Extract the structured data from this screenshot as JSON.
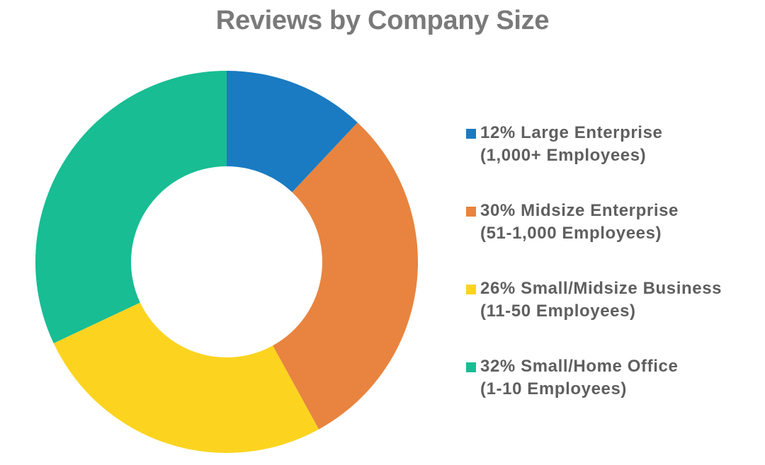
{
  "chart_data": {
    "type": "pie",
    "title": "Reviews by Company Size",
    "slices": [
      {
        "label": "Large Enterprise",
        "sublabel": "(1,000+ Employees)",
        "value": 12,
        "display": "12%",
        "color": "#1a7bc2"
      },
      {
        "label": "Midsize Enterprise",
        "sublabel": "(51-1,000 Employees)",
        "value": 30,
        "display": "30%",
        "color": "#e8843f"
      },
      {
        "label": "Small/Midsize Business",
        "sublabel": "(11-50 Employees)",
        "value": 26,
        "display": "26%",
        "color": "#fcd420"
      },
      {
        "label": "Small/Home Office",
        "sublabel": "(1-10 Employees)",
        "value": 32,
        "display": "32%",
        "color": "#18bd93"
      }
    ],
    "donut": true,
    "legend_position": "right"
  }
}
